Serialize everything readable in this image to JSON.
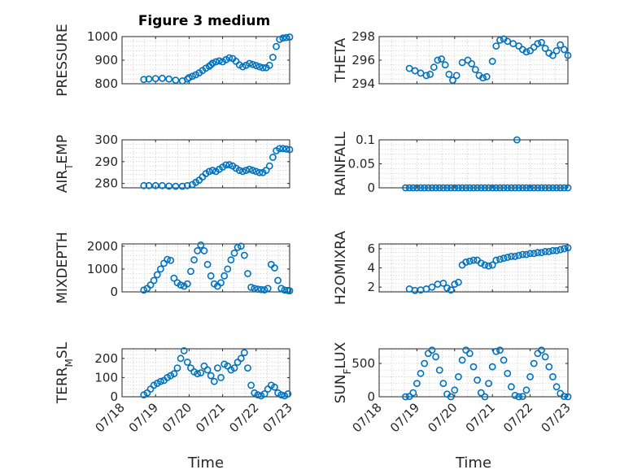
{
  "figure": {
    "title": "Figure 3 medium",
    "xlabel": "Time",
    "x_tick_labels": [
      "07/18",
      "07/19",
      "07/20",
      "07/21",
      "07/22",
      "07/23"
    ]
  },
  "colors": {
    "marker": "#0072BD",
    "axis": "#262626",
    "grid": "#c8c8c8"
  },
  "chart_data": [
    {
      "type": "scatter",
      "panel": "top-left",
      "title": "Figure 3 medium",
      "ylabel": "PRESSURE",
      "ylim": [
        800,
        1000
      ],
      "yticks": [
        800,
        900,
        1000
      ],
      "xlim": [
        0,
        5
      ],
      "grid": true,
      "marker": "circle",
      "x_days": [
        0.65,
        0.8,
        1.0,
        1.2,
        1.4,
        1.6,
        1.8,
        1.95,
        2.0,
        2.1,
        2.2,
        2.3,
        2.4,
        2.5,
        2.6,
        2.65,
        2.7,
        2.8,
        2.9,
        3.0,
        3.1,
        3.2,
        3.3,
        3.4,
        3.5,
        3.6,
        3.7,
        3.8,
        3.9,
        4.0,
        4.1,
        4.2,
        4.3,
        4.4,
        4.5,
        4.6,
        4.7,
        4.8,
        4.9,
        5.0
      ],
      "y": [
        818,
        820,
        822,
        823,
        820,
        815,
        812,
        820,
        826,
        832,
        838,
        846,
        856,
        866,
        874,
        880,
        887,
        893,
        897,
        893,
        902,
        910,
        907,
        895,
        880,
        872,
        878,
        886,
        882,
        877,
        872,
        868,
        868,
        878,
        912,
        958,
        988,
        994,
        996,
        998
      ]
    },
    {
      "type": "scatter",
      "panel": "top-right",
      "ylabel": "THETA",
      "ylim": [
        294,
        298
      ],
      "yticks": [
        294,
        296,
        298
      ],
      "xlim": [
        0,
        5
      ],
      "grid": true,
      "marker": "circle",
      "x_days": [
        0.8,
        0.95,
        1.1,
        1.25,
        1.35,
        1.45,
        1.55,
        1.65,
        1.75,
        1.85,
        1.95,
        2.05,
        2.2,
        2.35,
        2.45,
        2.55,
        2.65,
        2.75,
        2.85,
        3.0,
        3.1,
        3.2,
        3.3,
        3.4,
        3.55,
        3.7,
        3.8,
        3.9,
        4.0,
        4.1,
        4.2,
        4.3,
        4.4,
        4.5,
        4.6,
        4.7,
        4.8,
        4.9,
        5.0
      ],
      "y": [
        295.3,
        295.1,
        294.9,
        294.7,
        294.8,
        295.4,
        296.0,
        296.1,
        295.6,
        294.8,
        294.3,
        294.7,
        295.8,
        296.0,
        295.7,
        295.2,
        294.7,
        294.5,
        294.6,
        295.9,
        297.2,
        297.7,
        297.8,
        297.6,
        297.4,
        297.2,
        296.9,
        296.7,
        296.8,
        297.1,
        297.4,
        297.5,
        297.0,
        296.6,
        296.4,
        296.8,
        297.3,
        296.9,
        296.4
      ]
    },
    {
      "type": "scatter",
      "panel": "row2-left",
      "ylabel": "AIR_TEMP",
      "ylim": [
        278,
        300
      ],
      "yticks": [
        280,
        290,
        300
      ],
      "xlim": [
        0,
        5
      ],
      "grid": true,
      "marker": "circle",
      "x_days": [
        0.65,
        0.8,
        1.0,
        1.2,
        1.4,
        1.6,
        1.8,
        1.95,
        2.1,
        2.2,
        2.3,
        2.4,
        2.5,
        2.6,
        2.7,
        2.8,
        2.9,
        3.0,
        3.1,
        3.2,
        3.3,
        3.4,
        3.5,
        3.6,
        3.7,
        3.8,
        3.9,
        4.0,
        4.1,
        4.2,
        4.3,
        4.4,
        4.5,
        4.6,
        4.7,
        4.8,
        4.9,
        5.0
      ],
      "y": [
        279,
        279,
        279,
        279,
        278.8,
        278.7,
        278.7,
        279,
        279.5,
        280.5,
        281.5,
        283,
        284.5,
        285.5,
        286,
        285.5,
        286.5,
        287.5,
        288.5,
        288.6,
        288,
        287,
        286,
        285.5,
        286,
        286.5,
        286,
        285.5,
        285,
        285,
        286,
        288,
        292,
        295,
        296,
        296,
        295.8,
        295.5
      ]
    },
    {
      "type": "scatter",
      "panel": "row2-right",
      "ylabel": "RAINFALL",
      "ylim": [
        0,
        0.1
      ],
      "yticks": [
        0,
        0.05,
        0.1
      ],
      "xlim": [
        0,
        5
      ],
      "grid": true,
      "marker": "circle",
      "x_days": [
        0.7,
        0.8,
        0.9,
        1.0,
        1.1,
        1.2,
        1.3,
        1.4,
        1.5,
        1.6,
        1.7,
        1.8,
        1.9,
        2.0,
        2.1,
        2.2,
        2.3,
        2.4,
        2.5,
        2.6,
        2.7,
        2.8,
        2.9,
        3.0,
        3.1,
        3.2,
        3.3,
        3.4,
        3.5,
        3.6,
        3.65,
        3.7,
        3.8,
        3.9,
        4.0,
        4.1,
        4.2,
        4.3,
        4.4,
        4.5,
        4.6,
        4.7,
        4.8,
        4.9,
        5.0
      ],
      "y": [
        0,
        0,
        0,
        0,
        0,
        0,
        0,
        0,
        0,
        0,
        0,
        0,
        0,
        0,
        0,
        0,
        0,
        0,
        0,
        0,
        0,
        0,
        0,
        0,
        0,
        0,
        0,
        0,
        0,
        0,
        0.1,
        0,
        0,
        0,
        0,
        0,
        0,
        0,
        0,
        0,
        0,
        0,
        0,
        0,
        0
      ]
    },
    {
      "type": "scatter",
      "panel": "row3-left",
      "ylabel": "MIXDEPTH",
      "ylim": [
        0,
        2100
      ],
      "yticks": [
        0,
        1000,
        2000
      ],
      "xlim": [
        0,
        5
      ],
      "grid": true,
      "marker": "circle",
      "x_days": [
        0.65,
        0.75,
        0.85,
        0.95,
        1.05,
        1.15,
        1.25,
        1.35,
        1.45,
        1.55,
        1.65,
        1.75,
        1.85,
        1.95,
        2.05,
        2.15,
        2.25,
        2.35,
        2.45,
        2.55,
        2.65,
        2.75,
        2.85,
        2.95,
        3.05,
        3.15,
        3.25,
        3.35,
        3.45,
        3.55,
        3.65,
        3.75,
        3.85,
        3.95,
        4.05,
        4.15,
        4.25,
        4.35,
        4.45,
        4.55,
        4.65,
        4.75,
        4.85,
        4.95,
        5.0
      ],
      "y": [
        80,
        150,
        300,
        500,
        750,
        1000,
        1250,
        1420,
        1380,
        600,
        400,
        300,
        250,
        350,
        900,
        1400,
        1800,
        2050,
        1800,
        1200,
        700,
        350,
        250,
        400,
        700,
        1000,
        1400,
        1700,
        1950,
        2000,
        1600,
        800,
        200,
        150,
        120,
        100,
        90,
        150,
        1200,
        1050,
        500,
        150,
        80,
        60,
        50
      ]
    },
    {
      "type": "scatter",
      "panel": "row3-right",
      "ylabel": "H2OMIXRA",
      "ylim": [
        1.5,
        6.5
      ],
      "yticks": [
        2,
        4,
        6
      ],
      "xlim": [
        0,
        5
      ],
      "grid": true,
      "marker": "circle",
      "x_days": [
        0.8,
        0.95,
        1.1,
        1.25,
        1.4,
        1.55,
        1.7,
        1.8,
        1.9,
        2.0,
        2.1,
        2.2,
        2.3,
        2.4,
        2.5,
        2.6,
        2.7,
        2.8,
        2.9,
        3.0,
        3.1,
        3.2,
        3.3,
        3.4,
        3.5,
        3.6,
        3.7,
        3.8,
        3.9,
        4.0,
        4.1,
        4.2,
        4.3,
        4.4,
        4.5,
        4.6,
        4.7,
        4.8,
        4.9,
        5.0
      ],
      "y": [
        1.8,
        1.65,
        1.7,
        1.8,
        2.0,
        2.3,
        2.4,
        1.9,
        1.7,
        2.3,
        2.5,
        4.3,
        4.6,
        4.7,
        4.8,
        4.8,
        4.5,
        4.3,
        4.2,
        4.3,
        4.8,
        4.9,
        5.0,
        5.1,
        5.2,
        5.2,
        5.3,
        5.4,
        5.4,
        5.5,
        5.5,
        5.6,
        5.6,
        5.7,
        5.7,
        5.8,
        5.8,
        5.9,
        6.0,
        6.1
      ]
    },
    {
      "type": "scatter",
      "panel": "bottom-left",
      "ylabel": "TERR_MSL",
      "ylim": [
        0,
        250
      ],
      "yticks": [
        0,
        100,
        200
      ],
      "xlim": [
        0,
        5
      ],
      "grid": true,
      "marker": "circle",
      "x_days": [
        0.65,
        0.75,
        0.85,
        0.95,
        1.05,
        1.15,
        1.25,
        1.35,
        1.45,
        1.55,
        1.65,
        1.75,
        1.85,
        1.95,
        2.05,
        2.15,
        2.25,
        2.35,
        2.45,
        2.55,
        2.65,
        2.75,
        2.85,
        2.95,
        3.05,
        3.15,
        3.25,
        3.35,
        3.45,
        3.55,
        3.65,
        3.75,
        3.85,
        3.95,
        4.05,
        4.15,
        4.25,
        4.35,
        4.45,
        4.55,
        4.65,
        4.75,
        4.85,
        4.95
      ],
      "y": [
        10,
        20,
        40,
        60,
        70,
        80,
        85,
        100,
        110,
        120,
        150,
        200,
        240,
        180,
        150,
        130,
        120,
        125,
        160,
        140,
        110,
        80,
        150,
        100,
        170,
        160,
        140,
        150,
        180,
        200,
        230,
        150,
        60,
        20,
        10,
        5,
        15,
        40,
        60,
        50,
        20,
        10,
        5,
        15
      ]
    },
    {
      "type": "scatter",
      "panel": "bottom-right",
      "ylabel": "SUN_FLUX",
      "ylim": [
        0,
        720
      ],
      "yticks": [
        0,
        500
      ],
      "xlim": [
        0,
        5
      ],
      "grid": true,
      "marker": "circle",
      "x_days": [
        0.7,
        0.8,
        0.9,
        1.0,
        1.1,
        1.2,
        1.3,
        1.4,
        1.5,
        1.6,
        1.7,
        1.8,
        1.9,
        2.0,
        2.1,
        2.2,
        2.3,
        2.4,
        2.5,
        2.6,
        2.7,
        2.8,
        2.9,
        3.0,
        3.1,
        3.2,
        3.3,
        3.4,
        3.5,
        3.6,
        3.7,
        3.8,
        3.9,
        4.0,
        4.1,
        4.2,
        4.3,
        4.4,
        4.5,
        4.6,
        4.7,
        4.8,
        4.9,
        5.0
      ],
      "y": [
        0,
        5,
        60,
        200,
        350,
        500,
        650,
        700,
        600,
        400,
        200,
        40,
        0,
        100,
        300,
        550,
        700,
        650,
        450,
        250,
        60,
        0,
        200,
        450,
        680,
        700,
        550,
        350,
        150,
        20,
        0,
        5,
        100,
        300,
        500,
        650,
        700,
        600,
        450,
        300,
        150,
        50,
        5,
        0
      ]
    }
  ]
}
